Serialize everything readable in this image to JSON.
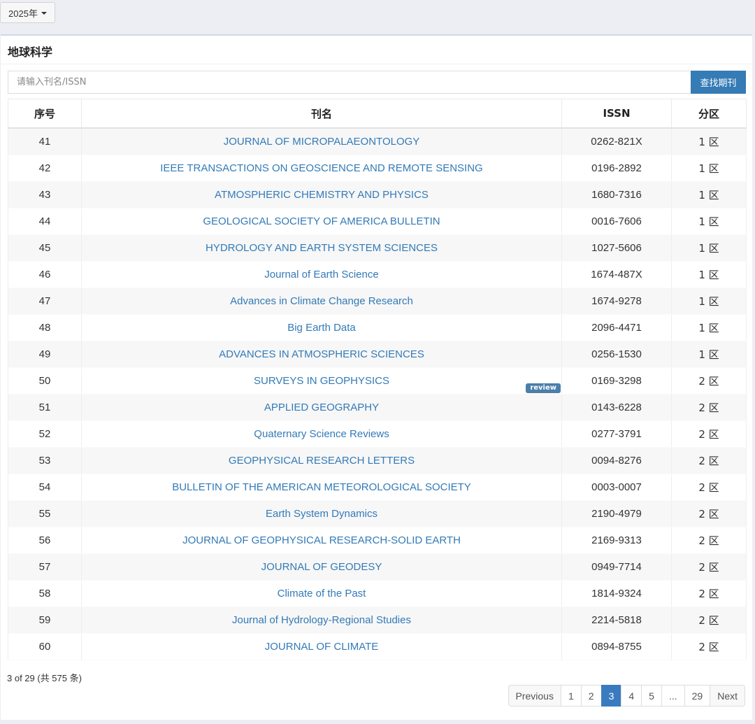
{
  "year_selector": {
    "label": "2025年"
  },
  "panel": {
    "title": "地球科学"
  },
  "search": {
    "placeholder": "请输入刊名/ISSN",
    "button_label": "查找期刊"
  },
  "table": {
    "headers": [
      "序号",
      "刊名",
      "ISSN",
      "分区"
    ],
    "rows": [
      {
        "no": "41",
        "name": "JOURNAL OF MICROPALAEONTOLOGY",
        "issn": "0262-821X",
        "zone": "1 区"
      },
      {
        "no": "42",
        "name": "IEEE TRANSACTIONS ON GEOSCIENCE AND REMOTE SENSING",
        "issn": "0196-2892",
        "zone": "1 区"
      },
      {
        "no": "43",
        "name": "ATMOSPHERIC CHEMISTRY AND PHYSICS",
        "issn": "1680-7316",
        "zone": "1 区"
      },
      {
        "no": "44",
        "name": "GEOLOGICAL SOCIETY OF AMERICA BULLETIN",
        "issn": "0016-7606",
        "zone": "1 区"
      },
      {
        "no": "45",
        "name": "HYDROLOGY AND EARTH SYSTEM SCIENCES",
        "issn": "1027-5606",
        "zone": "1 区"
      },
      {
        "no": "46",
        "name": "Journal of Earth Science",
        "issn": "1674-487X",
        "zone": "1 区"
      },
      {
        "no": "47",
        "name": "Advances in Climate Change Research",
        "issn": "1674-9278",
        "zone": "1 区"
      },
      {
        "no": "48",
        "name": "Big Earth Data",
        "issn": "2096-4471",
        "zone": "1 区"
      },
      {
        "no": "49",
        "name": "ADVANCES IN ATMOSPHERIC SCIENCES",
        "issn": "0256-1530",
        "zone": "1 区"
      },
      {
        "no": "50",
        "name": "SURVEYS IN GEOPHYSICS",
        "issn": "0169-3298",
        "zone": "2 区",
        "badge": "review"
      },
      {
        "no": "51",
        "name": "APPLIED GEOGRAPHY",
        "issn": "0143-6228",
        "zone": "2 区"
      },
      {
        "no": "52",
        "name": "Quaternary Science Reviews",
        "issn": "0277-3791",
        "zone": "2 区"
      },
      {
        "no": "53",
        "name": "GEOPHYSICAL RESEARCH LETTERS",
        "issn": "0094-8276",
        "zone": "2 区"
      },
      {
        "no": "54",
        "name": "BULLETIN OF THE AMERICAN METEOROLOGICAL SOCIETY",
        "issn": "0003-0007",
        "zone": "2 区"
      },
      {
        "no": "55",
        "name": "Earth System Dynamics",
        "issn": "2190-4979",
        "zone": "2 区"
      },
      {
        "no": "56",
        "name": "JOURNAL OF GEOPHYSICAL RESEARCH-SOLID EARTH",
        "issn": "2169-9313",
        "zone": "2 区"
      },
      {
        "no": "57",
        "name": "JOURNAL OF GEODESY",
        "issn": "0949-7714",
        "zone": "2 区"
      },
      {
        "no": "58",
        "name": "Climate of the Past",
        "issn": "1814-9324",
        "zone": "2 区"
      },
      {
        "no": "59",
        "name": "Journal of Hydrology-Regional Studies",
        "issn": "2214-5818",
        "zone": "2 区"
      },
      {
        "no": "60",
        "name": "JOURNAL OF CLIMATE",
        "issn": "0894-8755",
        "zone": "2 区"
      }
    ]
  },
  "summary": "3 of 29 (共 575 条)",
  "pagination": {
    "items": [
      "Previous",
      "1",
      "2",
      "3",
      "4",
      "5",
      "...",
      "29",
      "Next"
    ],
    "active": "3"
  },
  "colors": {
    "link": "#337ab7",
    "accent": "#357bb5",
    "badge": "#4a7fa9"
  }
}
